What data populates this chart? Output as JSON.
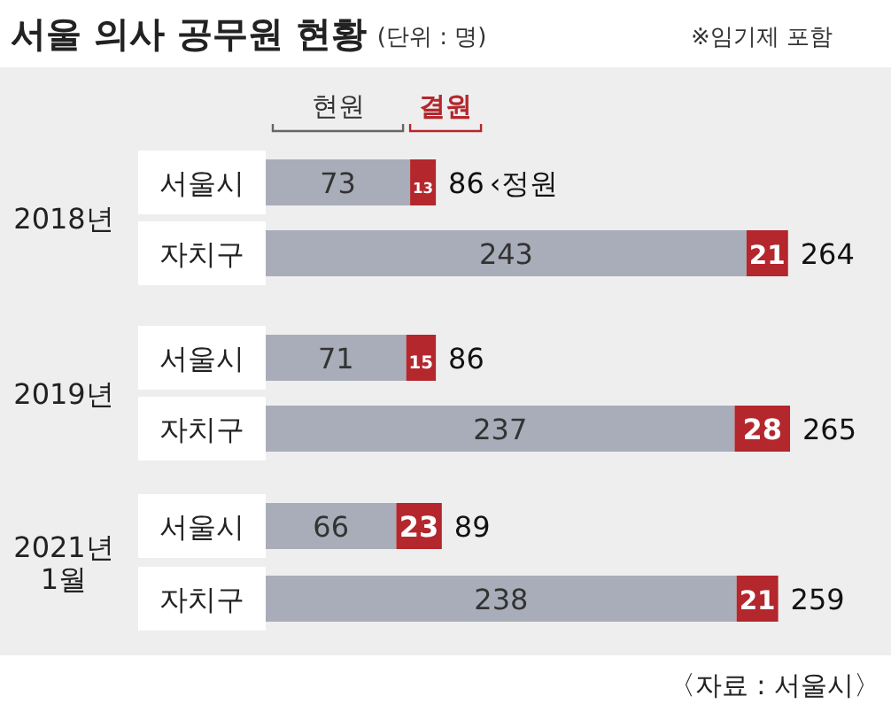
{
  "chart_data": {
    "type": "bar",
    "orientation": "horizontal",
    "stacked": true,
    "title": "서울 의사 공무원 현황",
    "data_labels": true,
    "legend": "top left",
    "categories": [
      "서울시",
      "자치구",
      "서울시",
      "자치구",
      "서울시",
      "자치구"
    ],
    "series": [
      {
        "name": "현원",
        "color": "#a9adb9",
        "values": [
          73,
          243,
          71,
          237,
          66,
          238
        ]
      },
      {
        "name": "결원",
        "color": "#b3272d",
        "values": [
          13,
          21,
          15,
          28,
          23,
          21
        ]
      }
    ],
    "totals": [
      "86",
      "264",
      "86",
      "265",
      "89",
      "259"
    ],
    "annotations": [
      "(단위 : 명)",
      "※임기제 포함",
      "2018년",
      "2019년",
      "2021년\n1월",
      "‹정원",
      "〈자료 : 서울시〉"
    ]
  }
}
